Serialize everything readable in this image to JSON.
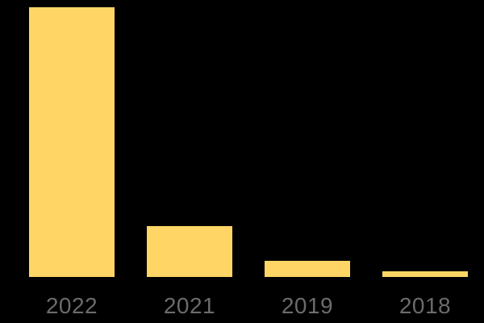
{
  "chart_data": {
    "type": "bar",
    "categories": [
      "2022",
      "2021",
      "2019",
      "2018"
    ],
    "values": [
      100,
      19,
      6,
      2
    ],
    "ylim": [
      0,
      100
    ],
    "grid": false,
    "legend": "none",
    "axes_visible": false,
    "colors": {
      "background": "#000000",
      "bar": "#FFD666",
      "axis_label": "#6B6B6B"
    }
  }
}
